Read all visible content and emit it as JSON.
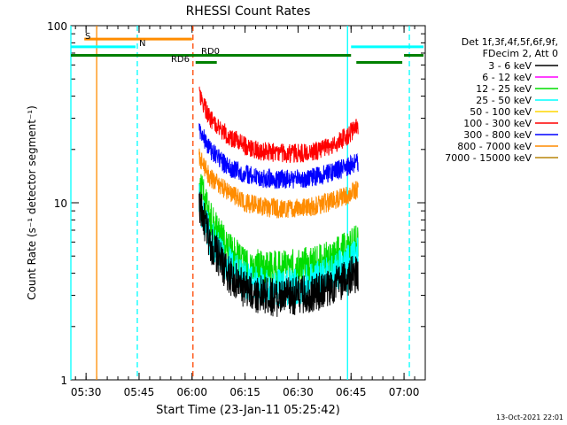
{
  "chart_data": {
    "type": "line",
    "title": "RHESSI Count Rates",
    "xlabel": "Start Time (23-Jan-11 05:25:42)",
    "ylabel": "Count Rate (s⁻¹ detector segment⁻¹)",
    "y_scale": "log",
    "ylim": [
      1,
      100
    ],
    "xlim": [
      "05:25:42",
      "07:06:00"
    ],
    "x_ticks": [
      "05:30",
      "05:45",
      "06:00",
      "06:15",
      "06:30",
      "06:45",
      "07:00"
    ],
    "y_ticks": [
      "1",
      "10",
      "100"
    ],
    "grid": false,
    "legend_position": "right",
    "legend_header": [
      "Det 1f,3f,4f,5f,6f,9f,",
      "FDecim 2, Att 0"
    ],
    "series": [
      {
        "name": "3 - 6 keV",
        "color": "#000000",
        "x": [
          "06:02",
          "06:05",
          "06:10",
          "06:15",
          "06:20",
          "06:25",
          "06:30",
          "06:35",
          "06:40",
          "06:44",
          "06:47"
        ],
        "values": [
          10.0,
          6.0,
          4.0,
          3.2,
          3.0,
          2.9,
          3.0,
          3.1,
          3.4,
          3.8,
          4.0
        ]
      },
      {
        "name": "6 - 12 keV",
        "color": "#ff00ff",
        "x": [],
        "values": []
      },
      {
        "name": "12 - 25 keV",
        "color": "#00dd00",
        "x": [
          "06:02",
          "06:05",
          "06:10",
          "06:15",
          "06:20",
          "06:25",
          "06:30",
          "06:35",
          "06:40",
          "06:44",
          "06:47"
        ],
        "values": [
          13.0,
          8.0,
          5.5,
          4.5,
          4.2,
          4.2,
          4.3,
          4.5,
          4.9,
          5.4,
          6.0
        ]
      },
      {
        "name": "25 - 50 keV",
        "color": "#00ffff",
        "x": [
          "06:02",
          "06:05",
          "06:10",
          "06:15",
          "06:20",
          "06:25",
          "06:30",
          "06:35",
          "06:40",
          "06:44",
          "06:47"
        ],
        "values": [
          10.0,
          6.5,
          4.5,
          3.6,
          3.4,
          3.3,
          3.4,
          3.6,
          4.0,
          4.5,
          5.0
        ]
      },
      {
        "name": "50 - 100 keV",
        "color": "#ffd700",
        "x": [],
        "values": []
      },
      {
        "name": "100 - 300 keV",
        "color": "#ff0000",
        "x": [
          "06:02",
          "06:05",
          "06:10",
          "06:15",
          "06:20",
          "06:25",
          "06:30",
          "06:35",
          "06:40",
          "06:44",
          "06:47"
        ],
        "values": [
          40.0,
          30.0,
          24.0,
          21.0,
          19.5,
          19.0,
          19.0,
          19.5,
          21.0,
          24.0,
          27.0
        ]
      },
      {
        "name": "300 - 800 keV",
        "color": "#0000ff",
        "x": [
          "06:02",
          "06:05",
          "06:10",
          "06:15",
          "06:20",
          "06:25",
          "06:30",
          "06:35",
          "06:40",
          "06:44",
          "06:47"
        ],
        "values": [
          26.0,
          20.0,
          16.0,
          14.5,
          13.8,
          13.5,
          13.6,
          14.0,
          15.0,
          16.0,
          17.0
        ]
      },
      {
        "name": "800 - 7000 keV",
        "color": "#ff8c00",
        "x": [
          "06:02",
          "06:05",
          "06:10",
          "06:15",
          "06:20",
          "06:25",
          "06:30",
          "06:35",
          "06:40",
          "06:44",
          "06:47"
        ],
        "values": [
          18.0,
          14.0,
          11.5,
          10.0,
          9.5,
          9.2,
          9.3,
          9.6,
          10.3,
          11.0,
          12.0
        ]
      },
      {
        "name": "7000 - 15000 keV",
        "color": "#b8860b",
        "x": [],
        "values": []
      }
    ],
    "attenuator_flags": [
      {
        "label": "S",
        "color": "#ff8c00",
        "x": [
          "05:29:30",
          "06:00:00"
        ],
        "level": 84
      },
      {
        "label": "N",
        "color": "#00ffff",
        "x": [
          "05:25:42",
          "05:44:00"
        ],
        "level": 76
      },
      {
        "label": "RD0",
        "color": "#008000",
        "x": [
          "05:25:42",
          "06:45:00"
        ],
        "level": 68
      },
      {
        "label": "RD6",
        "color": "#008000",
        "x": [
          "06:01:00",
          "06:07:00"
        ],
        "level": 62
      }
    ],
    "vlines": [
      {
        "time": "05:25:42",
        "color": "#00ffff",
        "style": "solid"
      },
      {
        "time": "05:33:00",
        "color": "#ff8c00",
        "style": "solid"
      },
      {
        "time": "05:44:30",
        "color": "#00ffff",
        "style": "dashed"
      },
      {
        "time": "06:00:15",
        "color": "#ff4500",
        "style": "dashed"
      },
      {
        "time": "06:44:00",
        "color": "#00ffff",
        "style": "solid"
      },
      {
        "time": "07:01:30",
        "color": "#00ffff",
        "style": "dashed"
      }
    ],
    "timestamp": "13-Oct-2021 22:01"
  }
}
